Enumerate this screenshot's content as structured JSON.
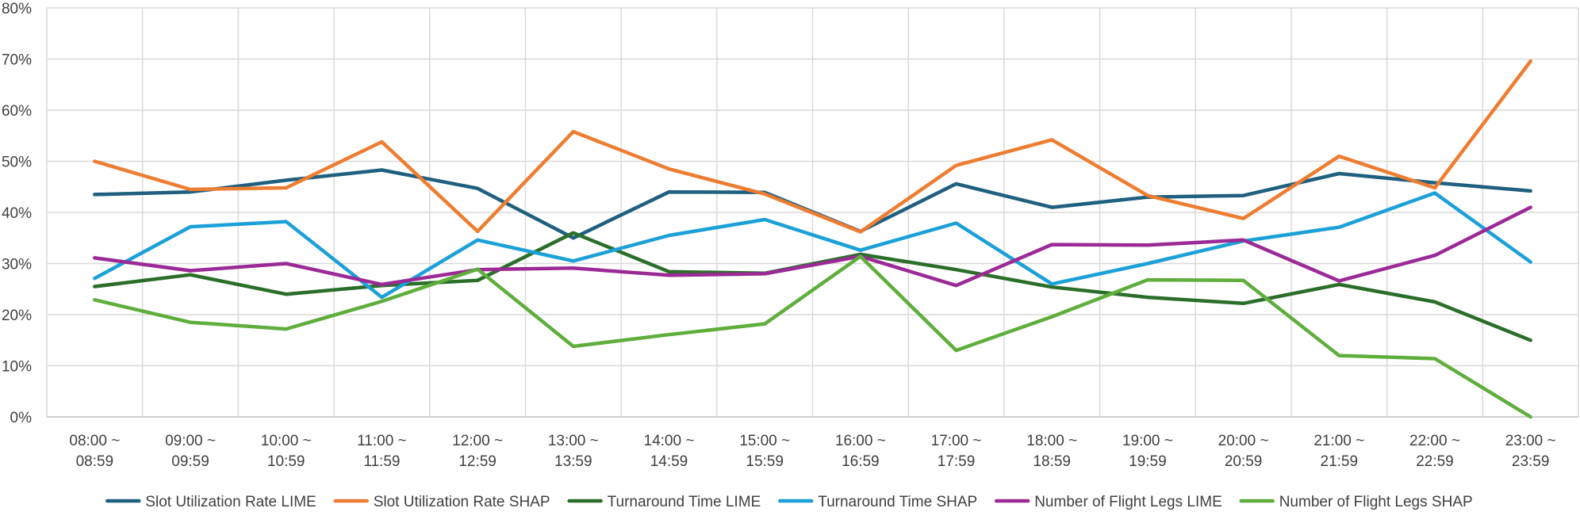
{
  "chart_data": {
    "type": "line",
    "title": "",
    "xlabel": "",
    "ylabel": "",
    "ylim": [
      0,
      80
    ],
    "y_tick_labels": [
      "0%",
      "10%",
      "20%",
      "30%",
      "40%",
      "50%",
      "60%",
      "70%",
      "80%"
    ],
    "y_unit": "%",
    "grid": true,
    "legend_position": "bottom",
    "categories": [
      [
        "08:00 ~",
        "08:59"
      ],
      [
        "09:00 ~",
        "09:59"
      ],
      [
        "10:00 ~",
        "10:59"
      ],
      [
        "11:00 ~",
        "11:59"
      ],
      [
        "12:00 ~",
        "12:59"
      ],
      [
        "13:00 ~",
        "13:59"
      ],
      [
        "14:00 ~",
        "14:59"
      ],
      [
        "15:00 ~",
        "15:59"
      ],
      [
        "16:00 ~",
        "16:59"
      ],
      [
        "17:00 ~",
        "17:59"
      ],
      [
        "18:00 ~",
        "18:59"
      ],
      [
        "19:00 ~",
        "19:59"
      ],
      [
        "20:00 ~",
        "20:59"
      ],
      [
        "21:00 ~",
        "21:59"
      ],
      [
        "22:00 ~",
        "22:59"
      ],
      [
        "23:00 ~",
        "23:59"
      ]
    ],
    "series": [
      {
        "name": "Slot Utilization Rate LIME",
        "color": "#1f5f7f",
        "values": [
          43.5,
          44.0,
          46.3,
          48.3,
          44.7,
          35.0,
          44.0,
          43.9,
          36.3,
          45.6,
          41.0,
          43.0,
          43.3,
          47.6,
          45.8,
          44.2
        ]
      },
      {
        "name": "Slot Utilization Rate SHAP",
        "color": "#ed7d31",
        "values": [
          50.0,
          44.5,
          44.8,
          53.8,
          36.3,
          55.8,
          48.5,
          43.6,
          36.2,
          49.2,
          54.2,
          43.3,
          38.8,
          51.0,
          44.8,
          69.6
        ]
      },
      {
        "name": "Turnaround Time LIME",
        "color": "#2a6e2a",
        "values": [
          25.5,
          27.8,
          24.0,
          25.7,
          26.7,
          36.0,
          28.4,
          28.1,
          31.8,
          28.8,
          25.4,
          23.4,
          22.2,
          25.9,
          22.5,
          15.0
        ]
      },
      {
        "name": "Turnaround Time SHAP",
        "color": "#1ca0d8",
        "values": [
          27.1,
          37.2,
          38.2,
          23.4,
          34.6,
          30.5,
          35.5,
          38.6,
          32.6,
          37.9,
          26.0,
          30.0,
          34.4,
          37.1,
          43.8,
          30.3
        ]
      },
      {
        "name": "Number of Flight Legs LIME",
        "color": "#9b2a96",
        "values": [
          31.1,
          28.6,
          30.0,
          25.9,
          28.8,
          29.1,
          27.7,
          28.0,
          31.4,
          25.7,
          33.7,
          33.6,
          34.6,
          26.6,
          31.6,
          41.0
        ]
      },
      {
        "name": "Number of Flight Legs SHAP",
        "color": "#5fae3c",
        "values": [
          22.9,
          18.5,
          17.2,
          22.6,
          28.9,
          13.8,
          16.1,
          18.2,
          31.4,
          13.0,
          19.6,
          26.8,
          26.7,
          12.0,
          11.4,
          0.0
        ]
      }
    ]
  }
}
